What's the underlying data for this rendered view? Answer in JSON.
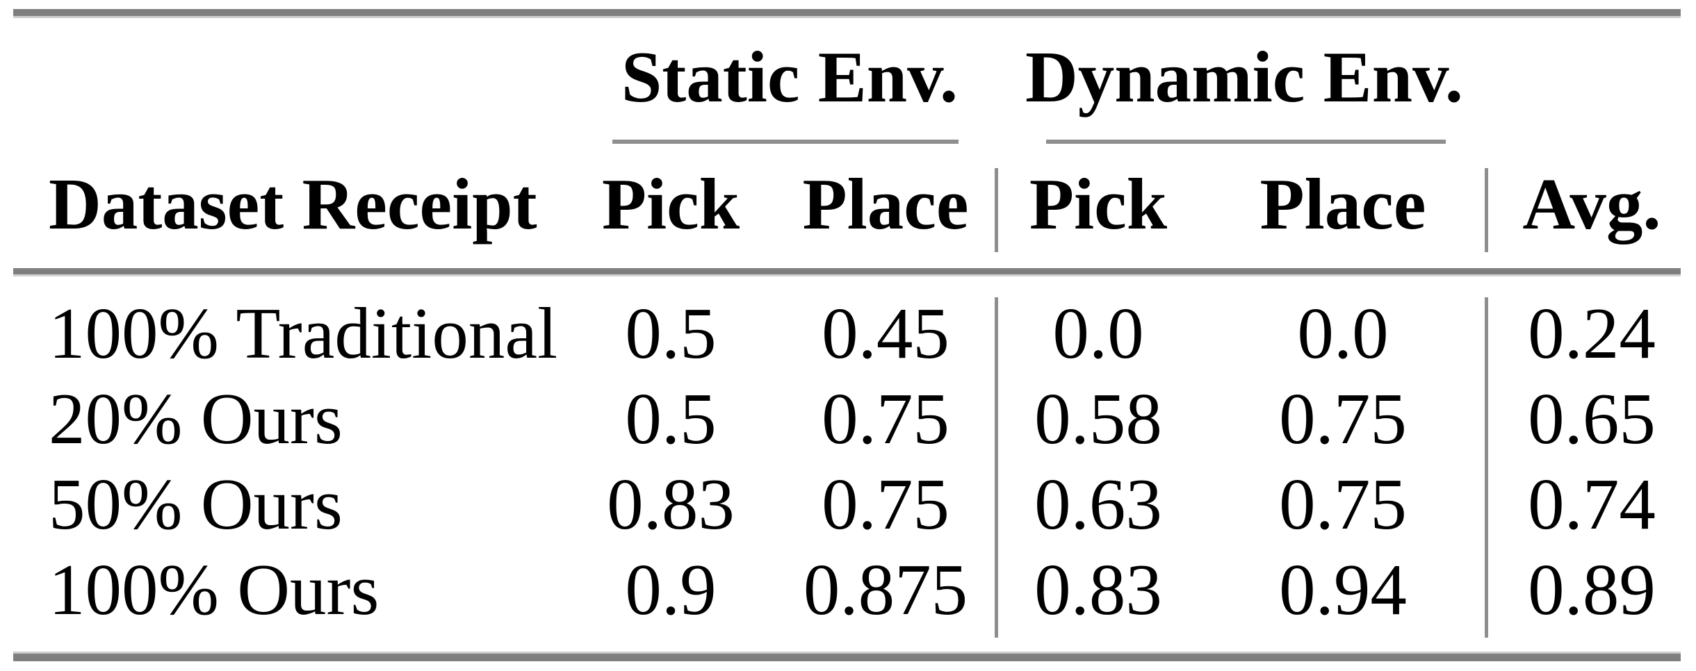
{
  "table": {
    "group_headers": [
      {
        "label": "Static Env."
      },
      {
        "label": "Dynamic Env."
      }
    ],
    "header": {
      "row_label": "Dataset Receipt",
      "columns": [
        "Pick",
        "Place",
        "Pick",
        "Place",
        "Avg."
      ]
    },
    "rows": [
      {
        "label": "100% Traditional",
        "values": [
          "0.5",
          "0.45",
          "0.0",
          "0.0",
          "0.24"
        ]
      },
      {
        "label": "20% Ours",
        "values": [
          "0.5",
          "0.75",
          "0.58",
          "0.75",
          "0.65"
        ]
      },
      {
        "label": "50% Ours",
        "values": [
          "0.83",
          "0.75",
          "0.63",
          "0.75",
          "0.74"
        ]
      },
      {
        "label": "100% Ours",
        "values": [
          "0.9",
          "0.875",
          "0.83",
          "0.94",
          "0.89"
        ]
      }
    ],
    "colors": {
      "text": "#000000",
      "rule_thick": "#7f7f7f",
      "rule_thin": "#8e8e8e",
      "background": "#ffffff"
    }
  },
  "chart_data": {
    "type": "table",
    "columns": [
      "Dataset Receipt",
      "Static Env. Pick",
      "Static Env. Place",
      "Dynamic Env. Pick",
      "Dynamic Env. Place",
      "Avg."
    ],
    "rows": [
      [
        "100% Traditional",
        0.5,
        0.45,
        0.0,
        0.0,
        0.24
      ],
      [
        "20% Ours",
        0.5,
        0.75,
        0.58,
        0.75,
        0.65
      ],
      [
        "50% Ours",
        0.83,
        0.75,
        0.63,
        0.75,
        0.74
      ],
      [
        "100% Ours",
        0.9,
        0.875,
        0.83,
        0.94,
        0.89
      ]
    ]
  }
}
